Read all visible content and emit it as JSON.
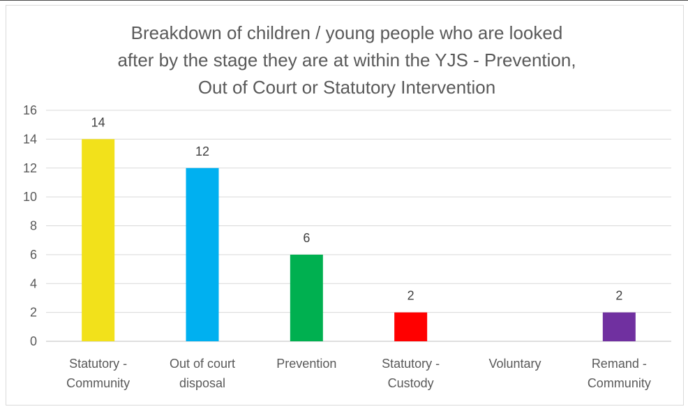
{
  "chart_data": {
    "type": "bar",
    "title_lines": [
      "Breakdown of children / young people who are looked",
      "after by the stage they are at within the YJS - Prevention,",
      "Out of Court or Statutory Intervention"
    ],
    "categories": [
      [
        "Statutory -",
        "Community"
      ],
      [
        "Out of court",
        "disposal"
      ],
      [
        "Prevention"
      ],
      [
        "Statutory -",
        "Custody"
      ],
      [
        "Voluntary"
      ],
      [
        "Remand -",
        "Community"
      ]
    ],
    "values": [
      14,
      12,
      6,
      2,
      0,
      2
    ],
    "data_labels": [
      "14",
      "12",
      "6",
      "2",
      "",
      "2"
    ],
    "colors": [
      "#f2e11b",
      "#00b0f0",
      "#00b050",
      "#ff0000",
      "#7f7f7f",
      "#7030a0"
    ],
    "ylim": [
      0,
      16
    ],
    "yticks": [
      "0",
      "2",
      "4",
      "6",
      "8",
      "10",
      "12",
      "14",
      "16"
    ],
    "grid": true,
    "legend": "none"
  }
}
